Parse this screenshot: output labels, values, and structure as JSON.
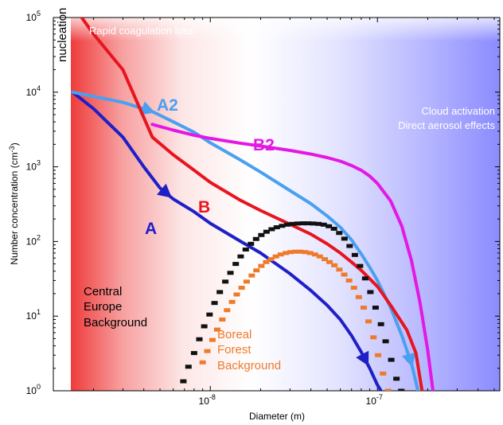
{
  "chart_data": {
    "type": "line",
    "xlabel": "Diameter (m)",
    "ylabel": "Number concentration (cm",
    "ylabel_sup": "-3",
    "ylabel_close": ")",
    "xscale": "log",
    "yscale": "log",
    "xlim": [
      1.5e-09,
      3e-07
    ],
    "ylim": [
      1,
      100000
    ],
    "x_ticks": [
      {
        "value": 1e-08,
        "base": "10",
        "exp": "-8"
      },
      {
        "value": 1e-07,
        "base": "10",
        "exp": "-7"
      }
    ],
    "y_ticks": [
      {
        "value": 1,
        "base": "10",
        "exp": "0"
      },
      {
        "value": 10,
        "base": "10",
        "exp": "1"
      },
      {
        "value": 100,
        "base": "10",
        "exp": "2"
      },
      {
        "value": 1000,
        "base": "10",
        "exp": "3"
      },
      {
        "value": 10000,
        "base": "10",
        "exp": "4"
      },
      {
        "value": 100000,
        "base": "10",
        "exp": "5"
      }
    ],
    "background": {
      "left_color": "#ef3b3b",
      "middle_color": "#ffffff",
      "right_color": "#8b8bff"
    },
    "series": [
      {
        "name": "A",
        "color": "#1f1fc8",
        "points": [
          [
            1.5e-09,
            10000
          ],
          [
            2e-09,
            6000
          ],
          [
            3e-09,
            2500
          ],
          [
            4e-09,
            1000
          ],
          [
            5e-09,
            520
          ],
          [
            6e-09,
            370
          ],
          [
            8e-09,
            250
          ],
          [
            1e-08,
            175
          ],
          [
            1.5e-08,
            102
          ],
          [
            2e-08,
            70
          ],
          [
            3e-08,
            37
          ],
          [
            4e-08,
            22
          ],
          [
            5e-08,
            14
          ],
          [
            6e-08,
            9
          ],
          [
            7e-08,
            5.5
          ],
          [
            8e-08,
            3.3
          ],
          [
            9e-08,
            2
          ],
          [
            1e-07,
            1.2
          ],
          [
            1.05e-07,
            1
          ]
        ],
        "arrows_at": [
          5.5e-09,
          8.5e-08
        ]
      },
      {
        "name": "A2",
        "color": "#4aa0f0",
        "points": [
          [
            1.5e-09,
            10000
          ],
          [
            3e-09,
            7300
          ],
          [
            4.5e-09,
            5500
          ],
          [
            6e-09,
            4000
          ],
          [
            8e-09,
            2900
          ],
          [
            1e-08,
            2100
          ],
          [
            1.5e-08,
            1250
          ],
          [
            2e-08,
            850
          ],
          [
            3e-08,
            480
          ],
          [
            4e-08,
            320
          ],
          [
            5e-08,
            220
          ],
          [
            6e-08,
            155
          ],
          [
            7e-08,
            105
          ],
          [
            8e-08,
            68
          ],
          [
            9e-08,
            45
          ],
          [
            1e-07,
            30
          ],
          [
            1.2e-07,
            13
          ],
          [
            1.4e-07,
            5.5
          ],
          [
            1.6e-07,
            2.3
          ],
          [
            1.75e-07,
            1
          ]
        ],
        "arrows_at": [
          4.3e-09,
          1.58e-07
        ]
      },
      {
        "name": "B",
        "color": "#e8141e",
        "points": [
          [
            1.7e-09,
            100000
          ],
          [
            2e-09,
            60000
          ],
          [
            3e-09,
            20000
          ],
          [
            4.5e-09,
            2500
          ],
          [
            6e-09,
            1450
          ],
          [
            8e-09,
            900
          ],
          [
            1e-08,
            620
          ],
          [
            1.5e-08,
            360
          ],
          [
            2e-08,
            260
          ],
          [
            3e-08,
            170
          ],
          [
            4e-08,
            125
          ],
          [
            5e-08,
            93
          ],
          [
            6e-08,
            70
          ],
          [
            7e-08,
            53
          ],
          [
            8e-08,
            41
          ],
          [
            1e-07,
            25
          ],
          [
            1.2e-07,
            14
          ],
          [
            1.5e-07,
            6.5
          ],
          [
            1.7e-07,
            3.2
          ],
          [
            1.85e-07,
            1
          ]
        ],
        "arrows_at": []
      },
      {
        "name": "B2",
        "color": "#e418e4",
        "points": [
          [
            4.5e-09,
            3700
          ],
          [
            6e-09,
            3100
          ],
          [
            8e-09,
            2650
          ],
          [
            1e-08,
            2400
          ],
          [
            1.5e-08,
            2080
          ],
          [
            2e-08,
            1900
          ],
          [
            3e-08,
            1660
          ],
          [
            4e-08,
            1480
          ],
          [
            5e-08,
            1330
          ],
          [
            6e-08,
            1190
          ],
          [
            7e-08,
            1040
          ],
          [
            8e-08,
            900
          ],
          [
            9e-08,
            750
          ],
          [
            1e-07,
            600
          ],
          [
            1.2e-07,
            350
          ],
          [
            1.4e-07,
            160
          ],
          [
            1.6e-07,
            55
          ],
          [
            1.8e-07,
            15
          ],
          [
            2e-07,
            3.5
          ],
          [
            2.15e-07,
            1
          ]
        ],
        "arrows_at": []
      },
      {
        "name": "Central Europe Background",
        "color": "#111111",
        "marker": "square",
        "points": [
          [
            6.9e-09,
            1.34
          ],
          [
            7.4e-09,
            2.1
          ],
          [
            8e-09,
            3.2
          ],
          [
            8.6e-09,
            4.9
          ],
          [
            9.2e-09,
            7.3
          ],
          [
            9.9e-09,
            10.5
          ],
          [
            1.06e-08,
            15
          ],
          [
            1.14e-08,
            21
          ],
          [
            1.23e-08,
            29
          ],
          [
            1.32e-08,
            38
          ],
          [
            1.42e-08,
            50
          ],
          [
            1.52e-08,
            63
          ],
          [
            1.63e-08,
            78
          ],
          [
            1.75e-08,
            93
          ],
          [
            1.88e-08,
            108
          ],
          [
            2.02e-08,
            122
          ],
          [
            2.17e-08,
            135
          ],
          [
            2.33e-08,
            146
          ],
          [
            2.5e-08,
            155
          ],
          [
            2.69e-08,
            162
          ],
          [
            2.89e-08,
            168
          ],
          [
            3.1e-08,
            172
          ],
          [
            3.33e-08,
            174
          ],
          [
            3.58e-08,
            175
          ],
          [
            3.85e-08,
            175
          ],
          [
            4.13e-08,
            174
          ],
          [
            4.44e-08,
            172
          ],
          [
            4.77e-08,
            168
          ],
          [
            5.12e-08,
            160
          ],
          [
            5.5e-08,
            148
          ],
          [
            5.91e-08,
            130
          ],
          [
            6.35e-08,
            109
          ],
          [
            6.82e-08,
            87
          ],
          [
            7.33e-08,
            66
          ],
          [
            7.87e-08,
            47
          ],
          [
            8.45e-08,
            32
          ],
          [
            9.08e-08,
            21
          ],
          [
            9.75e-08,
            13
          ],
          [
            1.05e-07,
            7.8
          ],
          [
            1.12e-07,
            4.6
          ],
          [
            1.21e-07,
            2.6
          ],
          [
            1.3e-07,
            1.45
          ],
          [
            1.39e-07,
            1.0
          ]
        ]
      },
      {
        "name": "Boreal Forest Background",
        "color": "#ee7a2a",
        "marker": "square",
        "points": [
          [
            9e-09,
            2.4
          ],
          [
            9.6e-09,
            3.4
          ],
          [
            1.03e-08,
            4.8
          ],
          [
            1.1e-08,
            6.6
          ],
          [
            1.18e-08,
            9.0
          ],
          [
            1.26e-08,
            12
          ],
          [
            1.35e-08,
            15.5
          ],
          [
            1.44e-08,
            19.5
          ],
          [
            1.54e-08,
            24
          ],
          [
            1.65e-08,
            29
          ],
          [
            1.77e-08,
            35
          ],
          [
            1.89e-08,
            41
          ],
          [
            2.02e-08,
            47
          ],
          [
            2.16e-08,
            53
          ],
          [
            2.31e-08,
            58
          ],
          [
            2.47e-08,
            63
          ],
          [
            2.64e-08,
            67
          ],
          [
            2.83e-08,
            70
          ],
          [
            3.02e-08,
            72
          ],
          [
            3.23e-08,
            73
          ],
          [
            3.46e-08,
            73
          ],
          [
            3.7e-08,
            72
          ],
          [
            3.96e-08,
            70
          ],
          [
            4.23e-08,
            67
          ],
          [
            4.52e-08,
            63
          ],
          [
            4.84e-08,
            58
          ],
          [
            5.17e-08,
            53
          ],
          [
            5.53e-08,
            48
          ],
          [
            5.92e-08,
            42
          ],
          [
            6.33e-08,
            36
          ],
          [
            6.77e-08,
            30
          ],
          [
            7.24e-08,
            24
          ],
          [
            7.74e-08,
            18
          ],
          [
            8.28e-08,
            13
          ],
          [
            8.85e-08,
            8.5
          ],
          [
            9.47e-08,
            5.2
          ],
          [
            1.01e-07,
            3.0
          ],
          [
            1.08e-07,
            1.7
          ],
          [
            1.16e-07,
            1.0
          ]
        ]
      }
    ]
  },
  "annotations": {
    "nucleation": "nucleation",
    "rapid": "Rapid coagulation loss",
    "cloud1": "Cloud activation",
    "cloud2": "Direct aerosol effects",
    "label_a": "A",
    "label_a2": "A2",
    "label_b": "B",
    "label_b2": "B2",
    "ce1": "Central",
    "ce2": "Europe",
    "ce3": "Background",
    "bf1": "Boreal",
    "bf2": "Forest",
    "bf3": "Background"
  }
}
